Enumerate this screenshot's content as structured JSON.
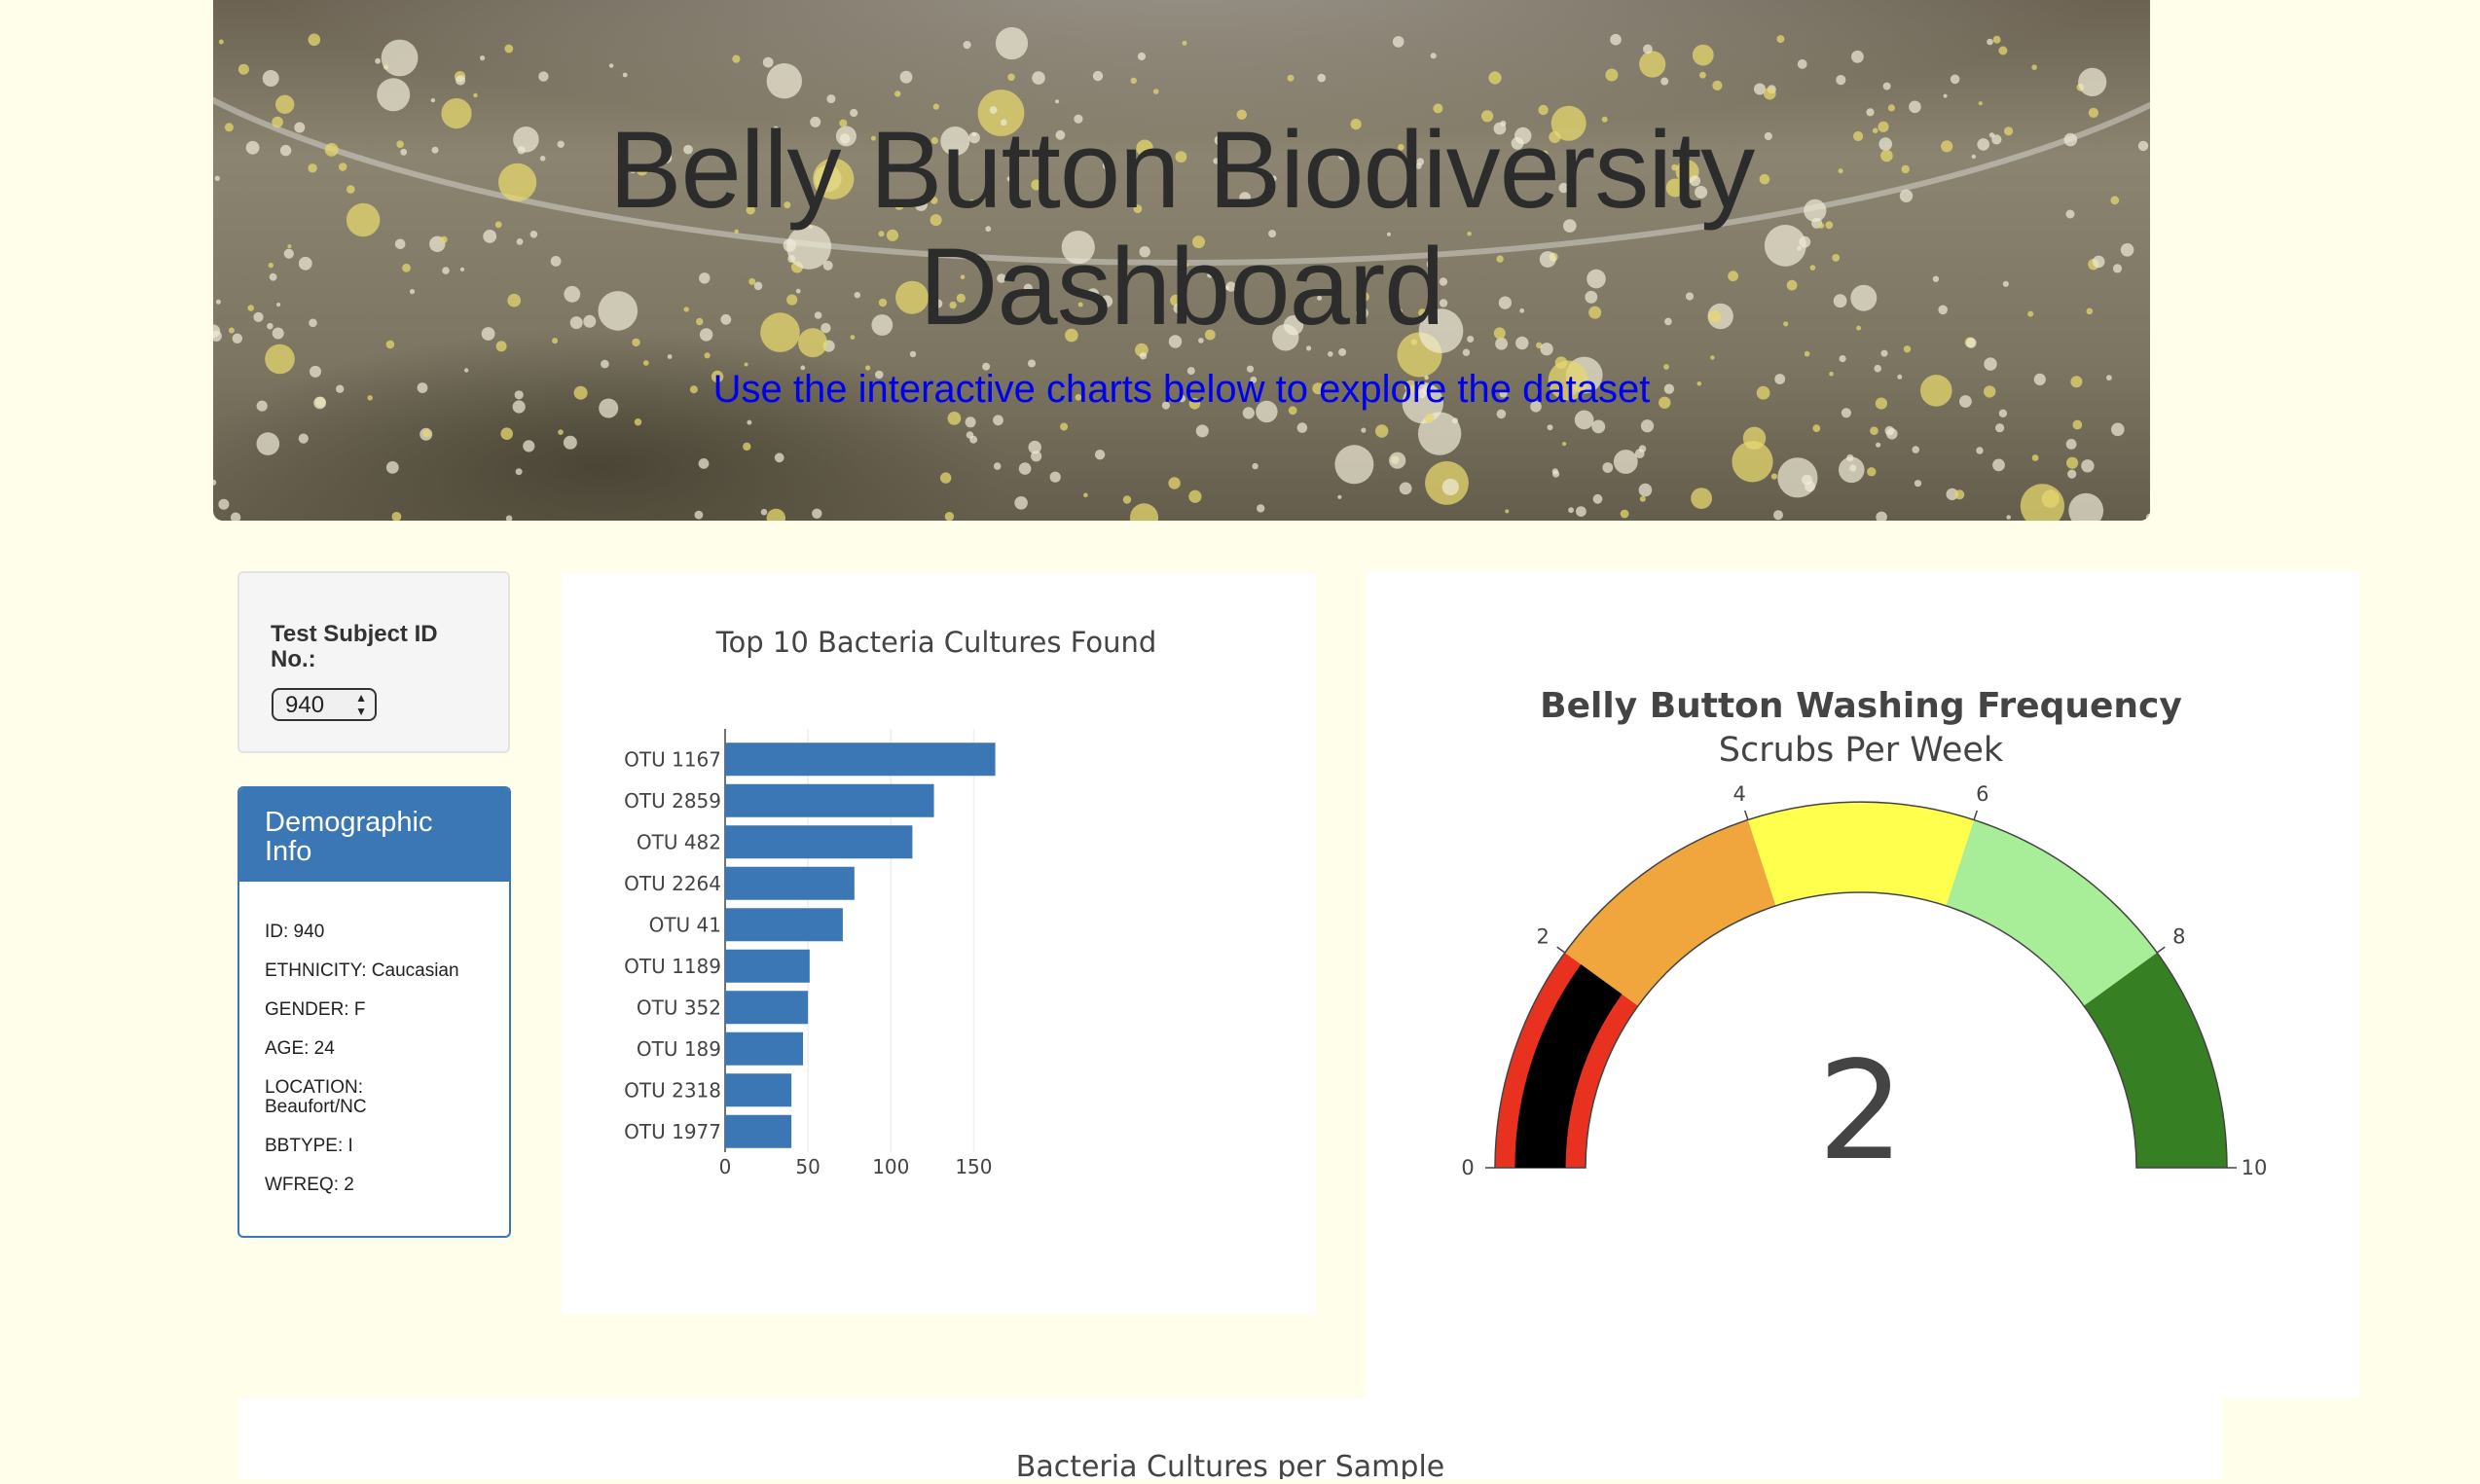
{
  "header": {
    "title_line1": "Belly Button Biodiversity",
    "title_line2": "Dashboard",
    "subtitle": "Use the interactive charts below to explore the dataset"
  },
  "selector": {
    "label": "Test Subject ID No.:",
    "selected": "940"
  },
  "demographics": {
    "title": "Demographic Info",
    "items": [
      "ID: 940",
      "ETHNICITY: Caucasian",
      "GENDER: F",
      "AGE: 24",
      "LOCATION: Beaufort/NC",
      "BBTYPE: I",
      "WFREQ: 2"
    ]
  },
  "colors": {
    "page_bg": "#fffeea",
    "panel_blue": "#3b76b5",
    "bar_blue": "#3b76b5",
    "subtitle_blue": "#0000f0"
  },
  "chart_data": [
    {
      "type": "bar",
      "orientation": "horizontal",
      "title": "Top 10 Bacteria Cultures Found",
      "categories": [
        "OTU 1167",
        "OTU 2859",
        "OTU 482",
        "OTU 2264",
        "OTU 41",
        "OTU 1189",
        "OTU 352",
        "OTU 189",
        "OTU 2318",
        "OTU 1977"
      ],
      "values": [
        163,
        126,
        113,
        78,
        71,
        51,
        50,
        47,
        40,
        40
      ],
      "xticks": [
        0,
        50,
        100,
        150
      ],
      "xlim": [
        0,
        175
      ],
      "grid": "vertical",
      "color": "#3b76b5"
    },
    {
      "type": "gauge",
      "title": "Belly Button Washing Frequency",
      "subtitle": "Scrubs Per Week",
      "value": 2,
      "range": [
        0,
        10
      ],
      "ticks": [
        0,
        2,
        4,
        6,
        8,
        10
      ],
      "steps": [
        {
          "range": [
            0,
            2
          ],
          "color": "#e8311f"
        },
        {
          "range": [
            2,
            4
          ],
          "color": "#f0a63c"
        },
        {
          "range": [
            4,
            6
          ],
          "color": "#ffff4d"
        },
        {
          "range": [
            6,
            8
          ],
          "color": "#a8ed97"
        },
        {
          "range": [
            8,
            10
          ],
          "color": "#367f22"
        }
      ],
      "bar_color": "#000000"
    },
    {
      "type": "scatter",
      "title": "Bacteria Cultures per Sample"
    }
  ]
}
